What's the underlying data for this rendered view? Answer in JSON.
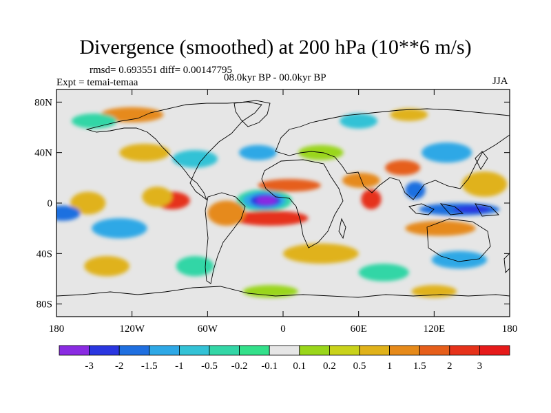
{
  "title": "Divergence (smoothed) at 200 hPa (10**6 m/s)",
  "stats": "rmsd= 0.693551 diff= 0.00147795",
  "experiment": "Expt = temai-temaa",
  "period": "08.0kyr BP - 00.0kyr BP",
  "season": "JJA",
  "axes": {
    "y_ticks": [
      {
        "label": "80N",
        "lat": 80
      },
      {
        "label": "40N",
        "lat": 40
      },
      {
        "label": "0",
        "lat": 0
      },
      {
        "label": "40S",
        "lat": -40
      },
      {
        "label": "80S",
        "lat": -80
      }
    ],
    "x_ticks": [
      {
        "label": "180",
        "lon": -180
      },
      {
        "label": "120W",
        "lon": -120
      },
      {
        "label": "60W",
        "lon": -60
      },
      {
        "label": "0",
        "lon": 0
      },
      {
        "label": "60E",
        "lon": 60
      },
      {
        "label": "120E",
        "lon": 120
      },
      {
        "label": "180",
        "lon": 180
      }
    ]
  },
  "colorbar": {
    "colors": [
      "#8a2be2",
      "#2a36e0",
      "#1f6fe0",
      "#2ea8e6",
      "#33c2d6",
      "#33d6a6",
      "#33e08a",
      "#e6e6e6",
      "#9ad61a",
      "#c9d21a",
      "#e0b21a",
      "#e68a1a",
      "#e65e1a",
      "#e6321a",
      "#e61a1a"
    ],
    "labels": [
      "-3",
      "-2",
      "-1.5",
      "-1",
      "-0.5",
      "-0.2",
      "-0.1",
      "0.1",
      "0.2",
      "0.5",
      "1",
      "1.5",
      "2",
      "3"
    ]
  },
  "field_blobs": [
    {
      "lon": -15,
      "lat": 2,
      "rx": 22,
      "ry": 9,
      "c": "#33d6a6"
    },
    {
      "lon": -15,
      "lat": 2,
      "rx": 17,
      "ry": 7,
      "c": "#2ea8e6"
    },
    {
      "lon": -14,
      "lat": 2,
      "rx": 12,
      "ry": 5,
      "c": "#2a36e0"
    },
    {
      "lon": -13,
      "lat": 2,
      "rx": 8,
      "ry": 3.5,
      "c": "#8a2be2"
    },
    {
      "lon": -10,
      "lat": -12,
      "rx": 30,
      "ry": 6,
      "c": "#e6321a"
    },
    {
      "lon": 5,
      "lat": 14,
      "rx": 25,
      "ry": 5,
      "c": "#e65e1a"
    },
    {
      "lon": -45,
      "lat": -8,
      "rx": 15,
      "ry": 10,
      "c": "#e68a1a"
    },
    {
      "lon": -88,
      "lat": 2,
      "rx": 14,
      "ry": 7,
      "c": "#e6321a"
    },
    {
      "lon": -100,
      "lat": 5,
      "rx": 12,
      "ry": 8,
      "c": "#e0b21a"
    },
    {
      "lon": -155,
      "lat": 0,
      "rx": 14,
      "ry": 9,
      "c": "#e0b21a"
    },
    {
      "lon": -130,
      "lat": -20,
      "rx": 22,
      "ry": 8,
      "c": "#2ea8e6"
    },
    {
      "lon": -175,
      "lat": -8,
      "rx": 14,
      "ry": 6,
      "c": "#1f6fe0"
    },
    {
      "lon": 70,
      "lat": 3,
      "rx": 8,
      "ry": 8,
      "c": "#e6321a"
    },
    {
      "lon": 62,
      "lat": 18,
      "rx": 15,
      "ry": 6,
      "c": "#e68a1a"
    },
    {
      "lon": 95,
      "lat": 28,
      "rx": 14,
      "ry": 6,
      "c": "#e65e1a"
    },
    {
      "lon": 105,
      "lat": 10,
      "rx": 8,
      "ry": 7,
      "c": "#1f6fe0"
    },
    {
      "lon": 140,
      "lat": -5,
      "rx": 32,
      "ry": 5,
      "c": "#1f6fe0"
    },
    {
      "lon": 150,
      "lat": -5,
      "rx": 15,
      "ry": 3,
      "c": "#2a36e0"
    },
    {
      "lon": 125,
      "lat": -20,
      "rx": 28,
      "ry": 6,
      "c": "#e68a1a"
    },
    {
      "lon": 160,
      "lat": 15,
      "rx": 18,
      "ry": 10,
      "c": "#e0b21a"
    },
    {
      "lon": 130,
      "lat": 40,
      "rx": 20,
      "ry": 8,
      "c": "#2ea8e6"
    },
    {
      "lon": -70,
      "lat": 35,
      "rx": 18,
      "ry": 7,
      "c": "#33c2d6"
    },
    {
      "lon": -110,
      "lat": 40,
      "rx": 20,
      "ry": 7,
      "c": "#e0b21a"
    },
    {
      "lon": -20,
      "lat": 40,
      "rx": 15,
      "ry": 6,
      "c": "#2ea8e6"
    },
    {
      "lon": 30,
      "lat": 40,
      "rx": 18,
      "ry": 6,
      "c": "#9ad61a"
    },
    {
      "lon": -120,
      "lat": 70,
      "rx": 25,
      "ry": 6,
      "c": "#e68a1a"
    },
    {
      "lon": -150,
      "lat": 65,
      "rx": 18,
      "ry": 6,
      "c": "#33d6a6"
    },
    {
      "lon": 60,
      "lat": 65,
      "rx": 15,
      "ry": 6,
      "c": "#33c2d6"
    },
    {
      "lon": 100,
      "lat": 70,
      "rx": 15,
      "ry": 5,
      "c": "#e0b21a"
    },
    {
      "lon": -140,
      "lat": -50,
      "rx": 18,
      "ry": 8,
      "c": "#e0b21a"
    },
    {
      "lon": -70,
      "lat": -50,
      "rx": 15,
      "ry": 8,
      "c": "#33d6a6"
    },
    {
      "lon": 30,
      "lat": -40,
      "rx": 30,
      "ry": 8,
      "c": "#e0b21a"
    },
    {
      "lon": 80,
      "lat": -55,
      "rx": 20,
      "ry": 7,
      "c": "#33d6a6"
    },
    {
      "lon": 140,
      "lat": -45,
      "rx": 22,
      "ry": 7,
      "c": "#2ea8e6"
    },
    {
      "lon": -10,
      "lat": -70,
      "rx": 22,
      "ry": 5,
      "c": "#9ad61a"
    },
    {
      "lon": 120,
      "lat": -70,
      "rx": 18,
      "ry": 5,
      "c": "#e0b21a"
    }
  ]
}
